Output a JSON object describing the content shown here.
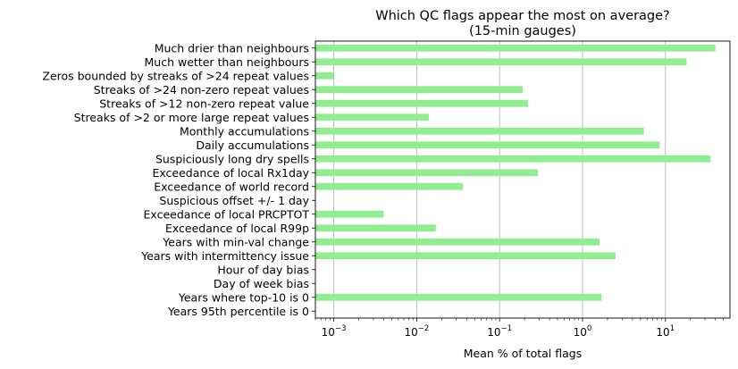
{
  "chart_data": {
    "type": "bar",
    "orientation": "horizontal",
    "title": [
      "Which QC flags appear the most on average?",
      "(15-min gauges)"
    ],
    "xlabel": "Mean % of total flags",
    "x_scale": "log",
    "xlim": [
      0.0006,
      60
    ],
    "xticks": [
      0.001,
      0.01,
      0.1,
      1,
      10
    ],
    "xtick_labels": [
      {
        "base": "10",
        "exp": "−3"
      },
      {
        "base": "10",
        "exp": "−2"
      },
      {
        "base": "10",
        "exp": "−1"
      },
      {
        "base": "10",
        "exp": "0"
      },
      {
        "base": "10",
        "exp": "1"
      }
    ],
    "grid": "x",
    "bar_color": "#90ee90",
    "categories": [
      "Much drier than neighbours",
      "Much wetter than neighbours",
      "Zeros bounded by streaks of >24 repeat values",
      "Streaks of >24 non-zero repeat values",
      "Streaks of >12 non-zero repeat value",
      "Streaks of >2 or more large repeat values",
      "Monthly accumulations",
      "Daily accumulations",
      "Suspiciously long dry spells",
      "Exceedance of local Rx1day",
      "Exceedance of world record",
      "Suspicious offset +/- 1 day",
      "Exceedance of local PRCPTOT",
      "Exceedance of local R99p",
      "Years with min-val change",
      "Years with intermittency issue",
      "Hour of day bias",
      "Day of week bias",
      "Years where top-10 is 0",
      "Years 95th percentile is 0"
    ],
    "values": [
      40,
      18,
      0.001,
      0.19,
      0.22,
      0.014,
      5.5,
      8.5,
      35,
      0.29,
      0.036,
      0,
      0.004,
      0.017,
      1.6,
      2.5,
      0,
      0,
      1.7,
      0
    ]
  }
}
